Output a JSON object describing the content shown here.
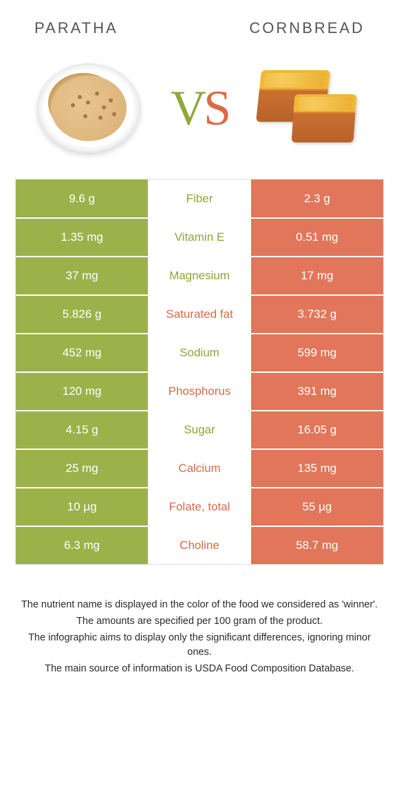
{
  "colors": {
    "left": "#9bb24a",
    "right": "#e1765a",
    "left_label": "#8ba636",
    "right_label": "#d86a47"
  },
  "foods": {
    "left": "PARATHA",
    "right": "CORNBREAD"
  },
  "vs": {
    "v": "V",
    "s": "S"
  },
  "rows": [
    {
      "left": "9.6 g",
      "label": "Fiber",
      "right": "2.3 g",
      "winner": "left"
    },
    {
      "left": "1.35 mg",
      "label": "Vitamin E",
      "right": "0.51 mg",
      "winner": "left"
    },
    {
      "left": "37 mg",
      "label": "Magnesium",
      "right": "17 mg",
      "winner": "left"
    },
    {
      "left": "5.826 g",
      "label": "Saturated fat",
      "right": "3.732 g",
      "winner": "right"
    },
    {
      "left": "452 mg",
      "label": "Sodium",
      "right": "599 mg",
      "winner": "left"
    },
    {
      "left": "120 mg",
      "label": "Phosphorus",
      "right": "391 mg",
      "winner": "right"
    },
    {
      "left": "4.15 g",
      "label": "Sugar",
      "right": "16.05 g",
      "winner": "left"
    },
    {
      "left": "25 mg",
      "label": "Calcium",
      "right": "135 mg",
      "winner": "right"
    },
    {
      "left": "10 µg",
      "label": "Folate, total",
      "right": "55 µg",
      "winner": "right"
    },
    {
      "left": "6.3 mg",
      "label": "Choline",
      "right": "58.7 mg",
      "winner": "right"
    }
  ],
  "footnotes": [
    "The nutrient name is displayed in the color of the food we considered as 'winner'.",
    "The amounts are specified per 100 gram of the product.",
    "The infographic aims to display only the significant differences, ignoring minor ones.",
    "The main source of information is USDA Food Composition Database."
  ]
}
